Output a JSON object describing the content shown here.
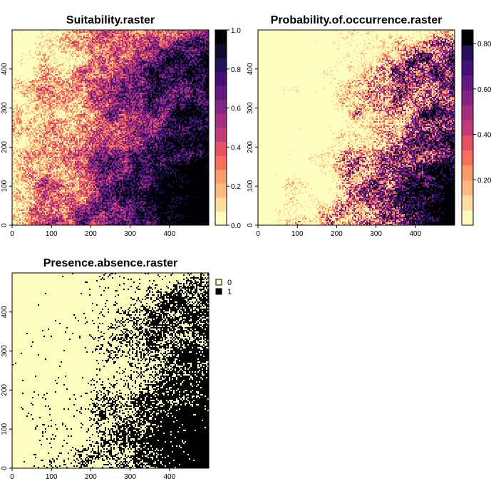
{
  "chart_data": [
    {
      "type": "heatmap",
      "title": "Suitability.raster",
      "xlim": [
        0,
        500
      ],
      "ylim": [
        0,
        500
      ],
      "x_ticks": [
        "0",
        "100",
        "200",
        "300",
        "400"
      ],
      "y_ticks": [
        "0",
        "100",
        "200",
        "300",
        "400"
      ],
      "legend": {
        "type": "continuous",
        "placement": "right",
        "range": [
          0,
          1
        ],
        "ticks": [
          "0.0",
          "0.2",
          "0.4",
          "0.6",
          "0.8",
          "1.0"
        ],
        "palette": [
          "#FCFDBF",
          "#FDDEA0",
          "#FEBA80",
          "#FB9A6B",
          "#F7705C",
          "#E65164",
          "#C33B75",
          "#A3307E",
          "#822681",
          "#63197F",
          "#440F76",
          "#241158",
          "#0F0B2C",
          "#000004"
        ]
      },
      "pattern": "high values (dark) concentrated on the right/east side; low values (light) in the upper-left and left"
    },
    {
      "type": "heatmap",
      "title": "Probability.of.occurrence.raster",
      "xlim": [
        0,
        500
      ],
      "ylim": [
        0,
        500
      ],
      "x_ticks": [
        "0",
        "100",
        "200",
        "300",
        "400"
      ],
      "y_ticks": [
        "0",
        "100",
        "200",
        "300",
        "400"
      ],
      "legend": {
        "type": "continuous",
        "placement": "right",
        "range": [
          0,
          0.86
        ],
        "ticks": [
          "0.20",
          "0.40",
          "0.60",
          "0.80"
        ],
        "palette": [
          "#FCFDBF",
          "#FDDEA0",
          "#FEBA80",
          "#FB9A6B",
          "#F7705C",
          "#E65164",
          "#C33B75",
          "#A3307E",
          "#822681",
          "#63197F",
          "#440F76",
          "#241158",
          "#000004"
        ]
      },
      "pattern": "mostly near zero (light yellow) across the left/center; higher probabilities on the right edge and bottom-right"
    },
    {
      "type": "heatmap",
      "title": "Presence.absence.raster",
      "xlim": [
        0,
        500
      ],
      "ylim": [
        0,
        500
      ],
      "x_ticks": [
        "0",
        "100",
        "200",
        "300",
        "400"
      ],
      "y_ticks": [
        "0",
        "100",
        "200",
        "300",
        "400"
      ],
      "legend": {
        "type": "categorical",
        "placement": "top-right",
        "entries": [
          {
            "label": "0",
            "color": "#FCFDBF"
          },
          {
            "label": "1",
            "color": "#000000"
          }
        ]
      },
      "pattern": "presences (1, black) dense on the right/east and bottom-right; absences (0) elsewhere"
    }
  ]
}
